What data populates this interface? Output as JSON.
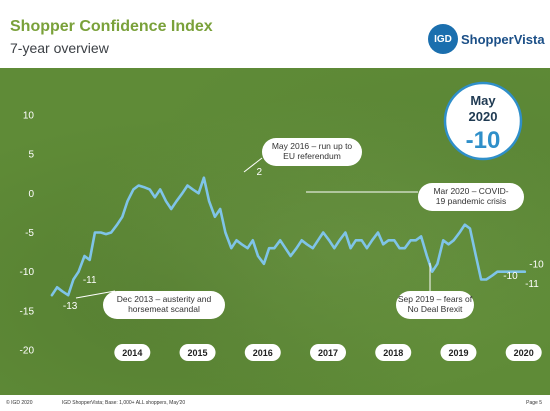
{
  "header": {
    "title_part1": "Shopper ",
    "title_part2": "Confidence Index",
    "subtitle": "7-year overview",
    "logo_badge": "IGD",
    "logo_text": "ShopperVista"
  },
  "callout": {
    "month": "May",
    "year": "2020",
    "value": "-10"
  },
  "footer": {
    "left": "© IGD 2020",
    "middle": "IGD ShopperVista; Base: 1,000+ ALL shoppers, May'20",
    "right": "Page 5"
  },
  "colors": {
    "background": "#5f8b37",
    "line": "#7fc4e8",
    "title_green": "#7aa13a",
    "accent_blue": "#2f8fc9"
  },
  "chart_data": {
    "type": "line",
    "title": "Shopper Confidence Index",
    "subtitle": "7-year overview",
    "ylim": [
      -20,
      10
    ],
    "yticks": [
      10,
      5,
      0,
      -5,
      -10,
      -15,
      -20
    ],
    "year_labels": [
      "2014",
      "2015",
      "2016",
      "2017",
      "2018",
      "2019",
      "2020"
    ],
    "year_positions": [
      2014.0,
      2015.0,
      2016.0,
      2017.0,
      2018.0,
      2019.0,
      2020.0
    ],
    "x_range": [
      2012.83,
      2020.25
    ],
    "grid": false,
    "legend": "none",
    "series": [
      {
        "x": [
          2012.92,
          2013.0,
          2013.08,
          2013.17,
          2013.25,
          2013.33,
          2013.42,
          2013.5,
          2013.58,
          2013.67,
          2013.75,
          2013.83,
          2013.92,
          2014.0,
          2014.08,
          2014.17,
          2014.25,
          2014.33,
          2014.42,
          2014.5,
          2014.58,
          2014.67,
          2014.75,
          2014.83,
          2014.92,
          2015.0,
          2015.08,
          2015.17,
          2015.25,
          2015.33,
          2015.42,
          2015.5,
          2015.58,
          2015.67,
          2015.75,
          2015.83,
          2015.92,
          2016.0,
          2016.08,
          2016.17,
          2016.25,
          2016.33,
          2016.42,
          2016.5,
          2016.58,
          2016.67,
          2016.75,
          2016.83,
          2016.92,
          2017.0,
          2017.08,
          2017.17,
          2017.25,
          2017.33,
          2017.42,
          2017.5,
          2017.58,
          2017.67,
          2017.75,
          2017.83,
          2017.92,
          2018.0,
          2018.08,
          2018.17,
          2018.25,
          2018.33,
          2018.42,
          2018.5,
          2018.58,
          2018.67,
          2018.75,
          2018.83,
          2018.92,
          2019.0,
          2019.08,
          2019.17,
          2019.25,
          2019.33,
          2019.42,
          2019.5,
          2019.58,
          2019.67,
          2019.75,
          2019.83,
          2019.92,
          2020.0,
          2020.08,
          2020.17
        ],
        "values": [
          -13,
          -12,
          -12.5,
          -13,
          -11,
          -10,
          -8,
          -8.5,
          -5,
          -5,
          -5.2,
          -5,
          -4,
          -3,
          -1,
          0.5,
          1,
          0.8,
          0.5,
          -0.5,
          0.5,
          -1,
          -2,
          -1,
          0,
          1,
          0.5,
          0,
          2,
          -1,
          -3,
          -2,
          -5,
          -7,
          -6,
          -6.5,
          -7,
          -6,
          -8,
          -9,
          -7,
          -7,
          -6,
          -7,
          -8,
          -7,
          -6,
          -6.5,
          -7,
          -6,
          -5,
          -6,
          -7,
          -6,
          -5,
          -7,
          -6,
          -6,
          -7,
          -6,
          -5,
          -6.5,
          -6,
          -6,
          -7,
          -7,
          -6,
          -6,
          -5.5,
          -8,
          -10,
          -9,
          -6,
          -6.5,
          -6,
          -5,
          -4,
          -4.5,
          -8,
          -11,
          -11,
          -10.5,
          -10,
          -10,
          -10,
          -10,
          -10,
          -10
        ],
        "name": ""
      }
    ],
    "data_labels": [
      {
        "x": 2013.5,
        "y": -11,
        "text": "-11"
      },
      {
        "x": 2013.2,
        "y": -14.3,
        "text": "-13"
      },
      {
        "x": 2016.1,
        "y": 2.8,
        "text": "2"
      },
      {
        "x": 2019.95,
        "y": -10.5,
        "text": "-10"
      },
      {
        "x": 2020.35,
        "y": -9,
        "text": "-10"
      },
      {
        "x": 2020.28,
        "y": -11.5,
        "text": "-11"
      }
    ],
    "annotations": [
      {
        "id": "ann-dec2013",
        "lines": [
          "Dec 2013 – austerity and",
          "horsemeat scandal"
        ]
      },
      {
        "id": "ann-may2016",
        "lines": [
          "May 2016 – run up to",
          "EU referendum"
        ]
      },
      {
        "id": "ann-mar2020",
        "lines": [
          "Mar 2020 – COVID-",
          "19 pandemic crisis"
        ]
      },
      {
        "id": "ann-sep2019",
        "lines": [
          "Sep 2019 – fears of",
          "No Deal Brexit"
        ]
      }
    ]
  }
}
